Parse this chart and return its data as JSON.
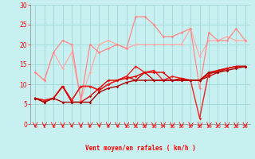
{
  "title": "",
  "xlabel": "Vent moyen/en rafales ( km/h )",
  "ylabel": "",
  "xlim": [
    -0.5,
    23.5
  ],
  "ylim": [
    0,
    30
  ],
  "yticks": [
    0,
    5,
    10,
    15,
    20,
    25,
    30
  ],
  "xticks": [
    0,
    1,
    2,
    3,
    4,
    5,
    6,
    7,
    8,
    9,
    10,
    11,
    12,
    13,
    14,
    15,
    16,
    17,
    18,
    19,
    20,
    21,
    22,
    23
  ],
  "background_color": "#c8f0f0",
  "grid_color": "#a0d8d8",
  "series": [
    {
      "y": [
        13,
        11,
        18,
        14,
        18,
        6,
        13,
        20,
        21,
        20,
        19,
        20,
        20,
        20,
        20,
        20,
        20,
        24,
        17,
        21,
        21,
        22,
        21,
        21
      ],
      "color": "#ffaaaa",
      "lw": 0.9,
      "marker": "D",
      "ms": 1.8
    },
    {
      "y": [
        13,
        11,
        18,
        21,
        20,
        6,
        20,
        18,
        19,
        20,
        19,
        27,
        27,
        25,
        22,
        22,
        23,
        24,
        9,
        23,
        21,
        21,
        24,
        21
      ],
      "color": "#ff8888",
      "lw": 0.9,
      "marker": "D",
      "ms": 1.8
    },
    {
      "y": [
        6.5,
        6,
        6.5,
        9.5,
        6,
        9.5,
        9.5,
        8.5,
        10,
        11,
        12,
        11,
        13,
        11,
        11,
        11,
        11,
        11,
        11,
        12,
        13,
        14,
        14.5,
        14.5
      ],
      "color": "#cc0000",
      "lw": 1.0,
      "marker": "D",
      "ms": 1.8
    },
    {
      "y": [
        6.5,
        6,
        6.5,
        9.5,
        6,
        9.5,
        9.5,
        8.5,
        10,
        11,
        12,
        14.5,
        13,
        13.5,
        11,
        12,
        11.5,
        11,
        1.5,
        13,
        13.5,
        14,
        14.5,
        14.5
      ],
      "color": "#ee2222",
      "lw": 1.0,
      "marker": "D",
      "ms": 1.8
    },
    {
      "y": [
        6.5,
        5.5,
        6.5,
        9.5,
        5.5,
        5.5,
        7,
        9,
        11,
        11,
        11.5,
        12,
        13,
        13,
        13,
        11,
        11.5,
        11,
        11,
        12.5,
        13.5,
        14,
        14.5,
        14.5
      ],
      "color": "#dd0000",
      "lw": 1.0,
      "marker": "D",
      "ms": 1.8
    },
    {
      "y": [
        6.5,
        5.5,
        6.5,
        5.5,
        5.5,
        5.5,
        5.5,
        8,
        9,
        9.5,
        10.5,
        11,
        11,
        11,
        11,
        11,
        11,
        11,
        11,
        13,
        13,
        13.5,
        14,
        14.5
      ],
      "color": "#aa0000",
      "lw": 1.0,
      "marker": "D",
      "ms": 1.8
    }
  ],
  "arrow_angles": [
    180,
    200,
    185,
    195,
    190,
    175,
    200,
    185,
    190,
    195,
    185,
    170,
    190,
    180,
    185,
    195,
    210,
    220,
    315,
    330,
    340,
    350,
    355,
    5
  ]
}
